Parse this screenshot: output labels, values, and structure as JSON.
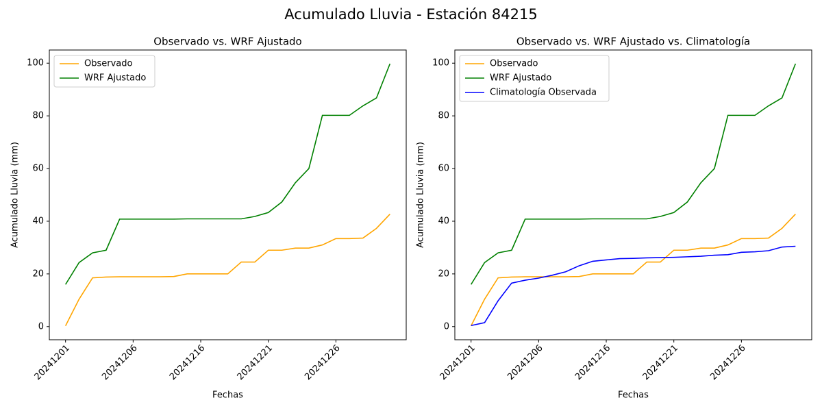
{
  "title": "Acumulado Lluvia - Estación 84215",
  "chart_data": [
    {
      "type": "line",
      "title": "Observado vs. WRF Ajustado",
      "xlabel": "Fechas",
      "ylabel": "Acumulado Lluvia (mm)",
      "categories": [
        "20241201",
        null,
        null,
        null,
        null,
        "20241206",
        null,
        null,
        null,
        null,
        "20241216",
        null,
        null,
        null,
        null,
        "20241221",
        null,
        null,
        null,
        null,
        "20241226",
        null,
        null,
        null,
        null
      ],
      "ylim": [
        -5,
        105
      ],
      "yticks": [
        0,
        20,
        40,
        60,
        80,
        100
      ],
      "grid": false,
      "legend": "upper left",
      "series": [
        {
          "name": "Observado",
          "color": "orange",
          "values": [
            0.3,
            10.4,
            18.5,
            18.8,
            18.9,
            18.9,
            18.9,
            18.9,
            19.0,
            20.0,
            20.0,
            20.0,
            20.0,
            24.5,
            24.5,
            29.0,
            29.0,
            29.8,
            29.8,
            31.0,
            33.4,
            33.4,
            33.6,
            37.3,
            42.7
          ]
        },
        {
          "name": "WRF Ajustado",
          "color": "green",
          "values": [
            16.0,
            24.3,
            28.0,
            29.0,
            40.8,
            40.8,
            40.8,
            40.8,
            40.8,
            40.9,
            40.9,
            40.9,
            40.9,
            40.9,
            41.8,
            43.3,
            47.3,
            54.6,
            60.0,
            80.2,
            80.2,
            80.2,
            83.8,
            86.8,
            99.8
          ]
        }
      ]
    },
    {
      "type": "line",
      "title": "Observado vs. WRF Ajustado vs. Climatología",
      "xlabel": "Fechas",
      "ylabel": "Acumulado Lluvia (mm)",
      "categories": [
        "20241201",
        null,
        null,
        null,
        null,
        "20241206",
        null,
        null,
        null,
        null,
        "20241216",
        null,
        null,
        null,
        null,
        "20241221",
        null,
        null,
        null,
        null,
        "20241226",
        null,
        null,
        null,
        null
      ],
      "ylim": [
        -5,
        105
      ],
      "yticks": [
        0,
        20,
        40,
        60,
        80,
        100
      ],
      "grid": false,
      "legend": "upper left",
      "series": [
        {
          "name": "Observado",
          "color": "orange",
          "values": [
            0.3,
            10.4,
            18.5,
            18.8,
            18.9,
            18.9,
            18.9,
            18.9,
            19.0,
            20.0,
            20.0,
            20.0,
            20.0,
            24.5,
            24.5,
            29.0,
            29.0,
            29.8,
            29.8,
            31.0,
            33.4,
            33.4,
            33.6,
            37.3,
            42.7
          ]
        },
        {
          "name": "WRF Ajustado",
          "color": "green",
          "values": [
            16.0,
            24.3,
            28.0,
            29.0,
            40.8,
            40.8,
            40.8,
            40.8,
            40.8,
            40.9,
            40.9,
            40.9,
            40.9,
            40.9,
            41.8,
            43.3,
            47.3,
            54.6,
            60.0,
            80.2,
            80.2,
            80.2,
            83.8,
            86.8,
            99.8
          ]
        },
        {
          "name": "Climatología Observada",
          "color": "blue",
          "values": [
            0.4,
            1.5,
            9.8,
            16.5,
            17.6,
            18.4,
            19.5,
            20.8,
            23.1,
            24.8,
            25.3,
            25.8,
            25.9,
            26.1,
            26.2,
            26.3,
            26.5,
            26.7,
            27.1,
            27.3,
            28.2,
            28.4,
            28.8,
            30.2,
            30.5
          ]
        }
      ]
    }
  ]
}
